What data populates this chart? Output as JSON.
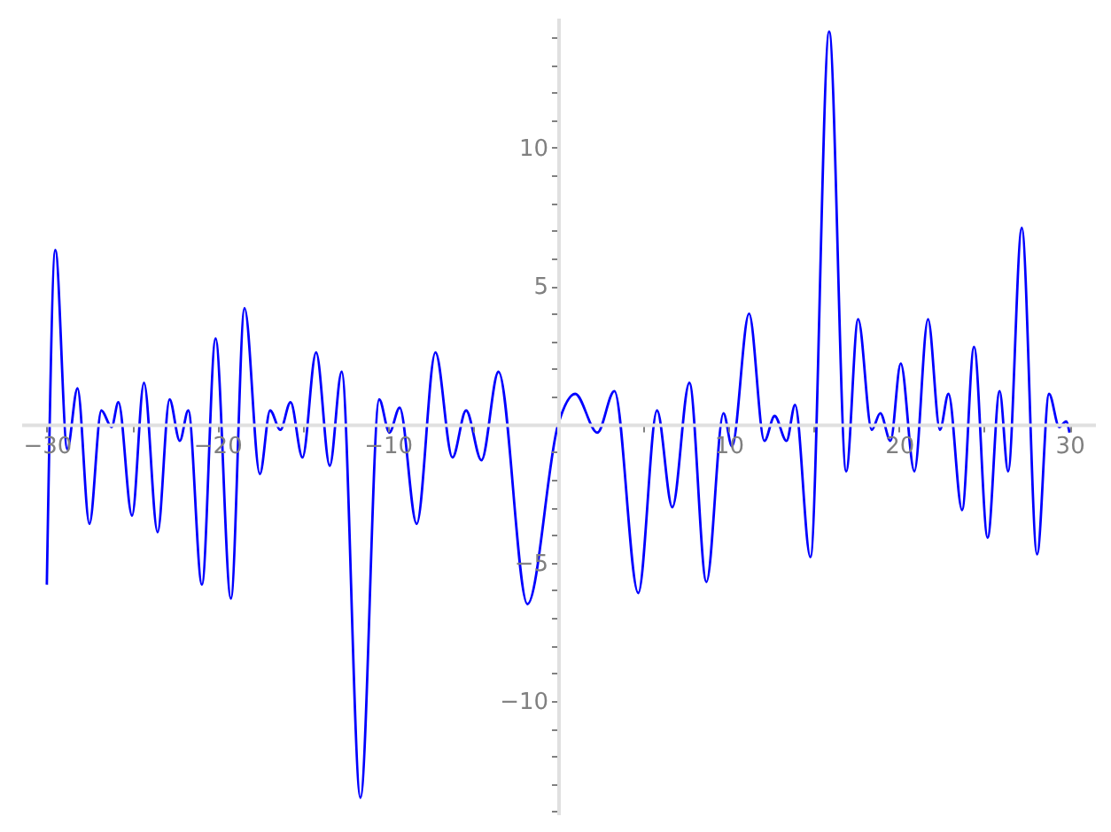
{
  "chart_data": {
    "type": "line",
    "x": [
      -30,
      -29.5,
      -28.8,
      -28.2,
      -27.5,
      -26.8,
      -26.2,
      -25.8,
      -25.0,
      -24.3,
      -23.5,
      -22.8,
      -22.2,
      -21.7,
      -20.9,
      -20.1,
      -19.2,
      -18.4,
      -17.5,
      -16.9,
      -16.3,
      -15.7,
      -15.0,
      -14.2,
      -13.4,
      -12.7,
      -11.6,
      -10.5,
      -9.9,
      -9.3,
      -8.3,
      -7.2,
      -6.2,
      -5.4,
      -4.5,
      -3.5,
      -1.8,
      0,
      1.0,
      2.3,
      3.3,
      4.7,
      5.8,
      6.7,
      7.7,
      8.7,
      9.7,
      10.2,
      11.2,
      12.1,
      12.7,
      13.4,
      13.9,
      14.8,
      15.9,
      16.9,
      17.6,
      18.4,
      18.9,
      19.5,
      20.1,
      20.9,
      21.7,
      22.4,
      22.9,
      23.7,
      24.4,
      25.2,
      25.9,
      26.4,
      27.2,
      28.1,
      28.8,
      29.4,
      29.8,
      30
    ],
    "series": [
      {
        "color": "#0000ff",
        "values": [
          -5.8,
          6.3,
          -0.9,
          1.3,
          -3.6,
          0.5,
          -0.1,
          0.8,
          -3.3,
          1.5,
          -3.9,
          0.9,
          -0.6,
          0.5,
          -5.8,
          3.1,
          -6.3,
          4.2,
          -1.8,
          0.5,
          -0.2,
          0.8,
          -1.2,
          2.6,
          -1.5,
          1.9,
          -13.5,
          0.9,
          -0.3,
          0.6,
          -3.6,
          2.6,
          -1.2,
          0.5,
          -1.3,
          1.9,
          -6.5,
          0,
          1.1,
          -0.3,
          1.2,
          -6.1,
          0.5,
          -3.0,
          1.5,
          -5.7,
          0.4,
          -0.8,
          4.0,
          -0.6,
          0.3,
          -0.6,
          0.7,
          -4.8,
          14.2,
          -1.7,
          3.8,
          -0.2,
          0.4,
          -0.6,
          2.2,
          -1.7,
          3.8,
          -0.2,
          1.1,
          -3.1,
          2.8,
          -4.1,
          1.2,
          -1.7,
          7.1,
          -4.7,
          1.1,
          -0.1,
          0.1,
          -0.3
        ]
      }
    ],
    "xlim": [
      -31.5,
      31.5
    ],
    "ylim": [
      -14.1,
      14.7
    ],
    "xticks": [
      -30,
      {
        "value": -25,
        "label": null
      },
      -20,
      {
        "value": -15,
        "label": null
      },
      -10,
      {
        "value": -5,
        "label": null
      },
      {
        "value": 5,
        "label": null
      },
      10,
      {
        "value": 15,
        "label": null
      },
      20,
      {
        "value": 25,
        "label": null
      },
      30
    ],
    "yticks": [
      {
        "value": -14,
        "label": null
      },
      {
        "value": -13,
        "label": null
      },
      {
        "value": -12,
        "label": null
      },
      {
        "value": -11,
        "label": null
      },
      -10,
      {
        "value": -9,
        "label": null
      },
      {
        "value": -8,
        "label": null
      },
      {
        "value": -7,
        "label": null
      },
      {
        "value": -6,
        "label": null
      },
      -5,
      {
        "value": -4,
        "label": null
      },
      {
        "value": -3,
        "label": null
      },
      {
        "value": -2,
        "label": null
      },
      {
        "value": -1,
        "label": null
      },
      {
        "value": 1,
        "label": null
      },
      {
        "value": 2,
        "label": null
      },
      {
        "value": 3,
        "label": null
      },
      {
        "value": 4,
        "label": null
      },
      5,
      {
        "value": 6,
        "label": null
      },
      {
        "value": 7,
        "label": null
      },
      {
        "value": 8,
        "label": null
      },
      {
        "value": 9,
        "label": null
      },
      10,
      {
        "value": 11,
        "label": null
      },
      {
        "value": 12,
        "label": null
      },
      {
        "value": 13,
        "label": null
      },
      {
        "value": 14,
        "label": null
      }
    ],
    "grid": false,
    "marker": "none",
    "line_style": "solid"
  }
}
